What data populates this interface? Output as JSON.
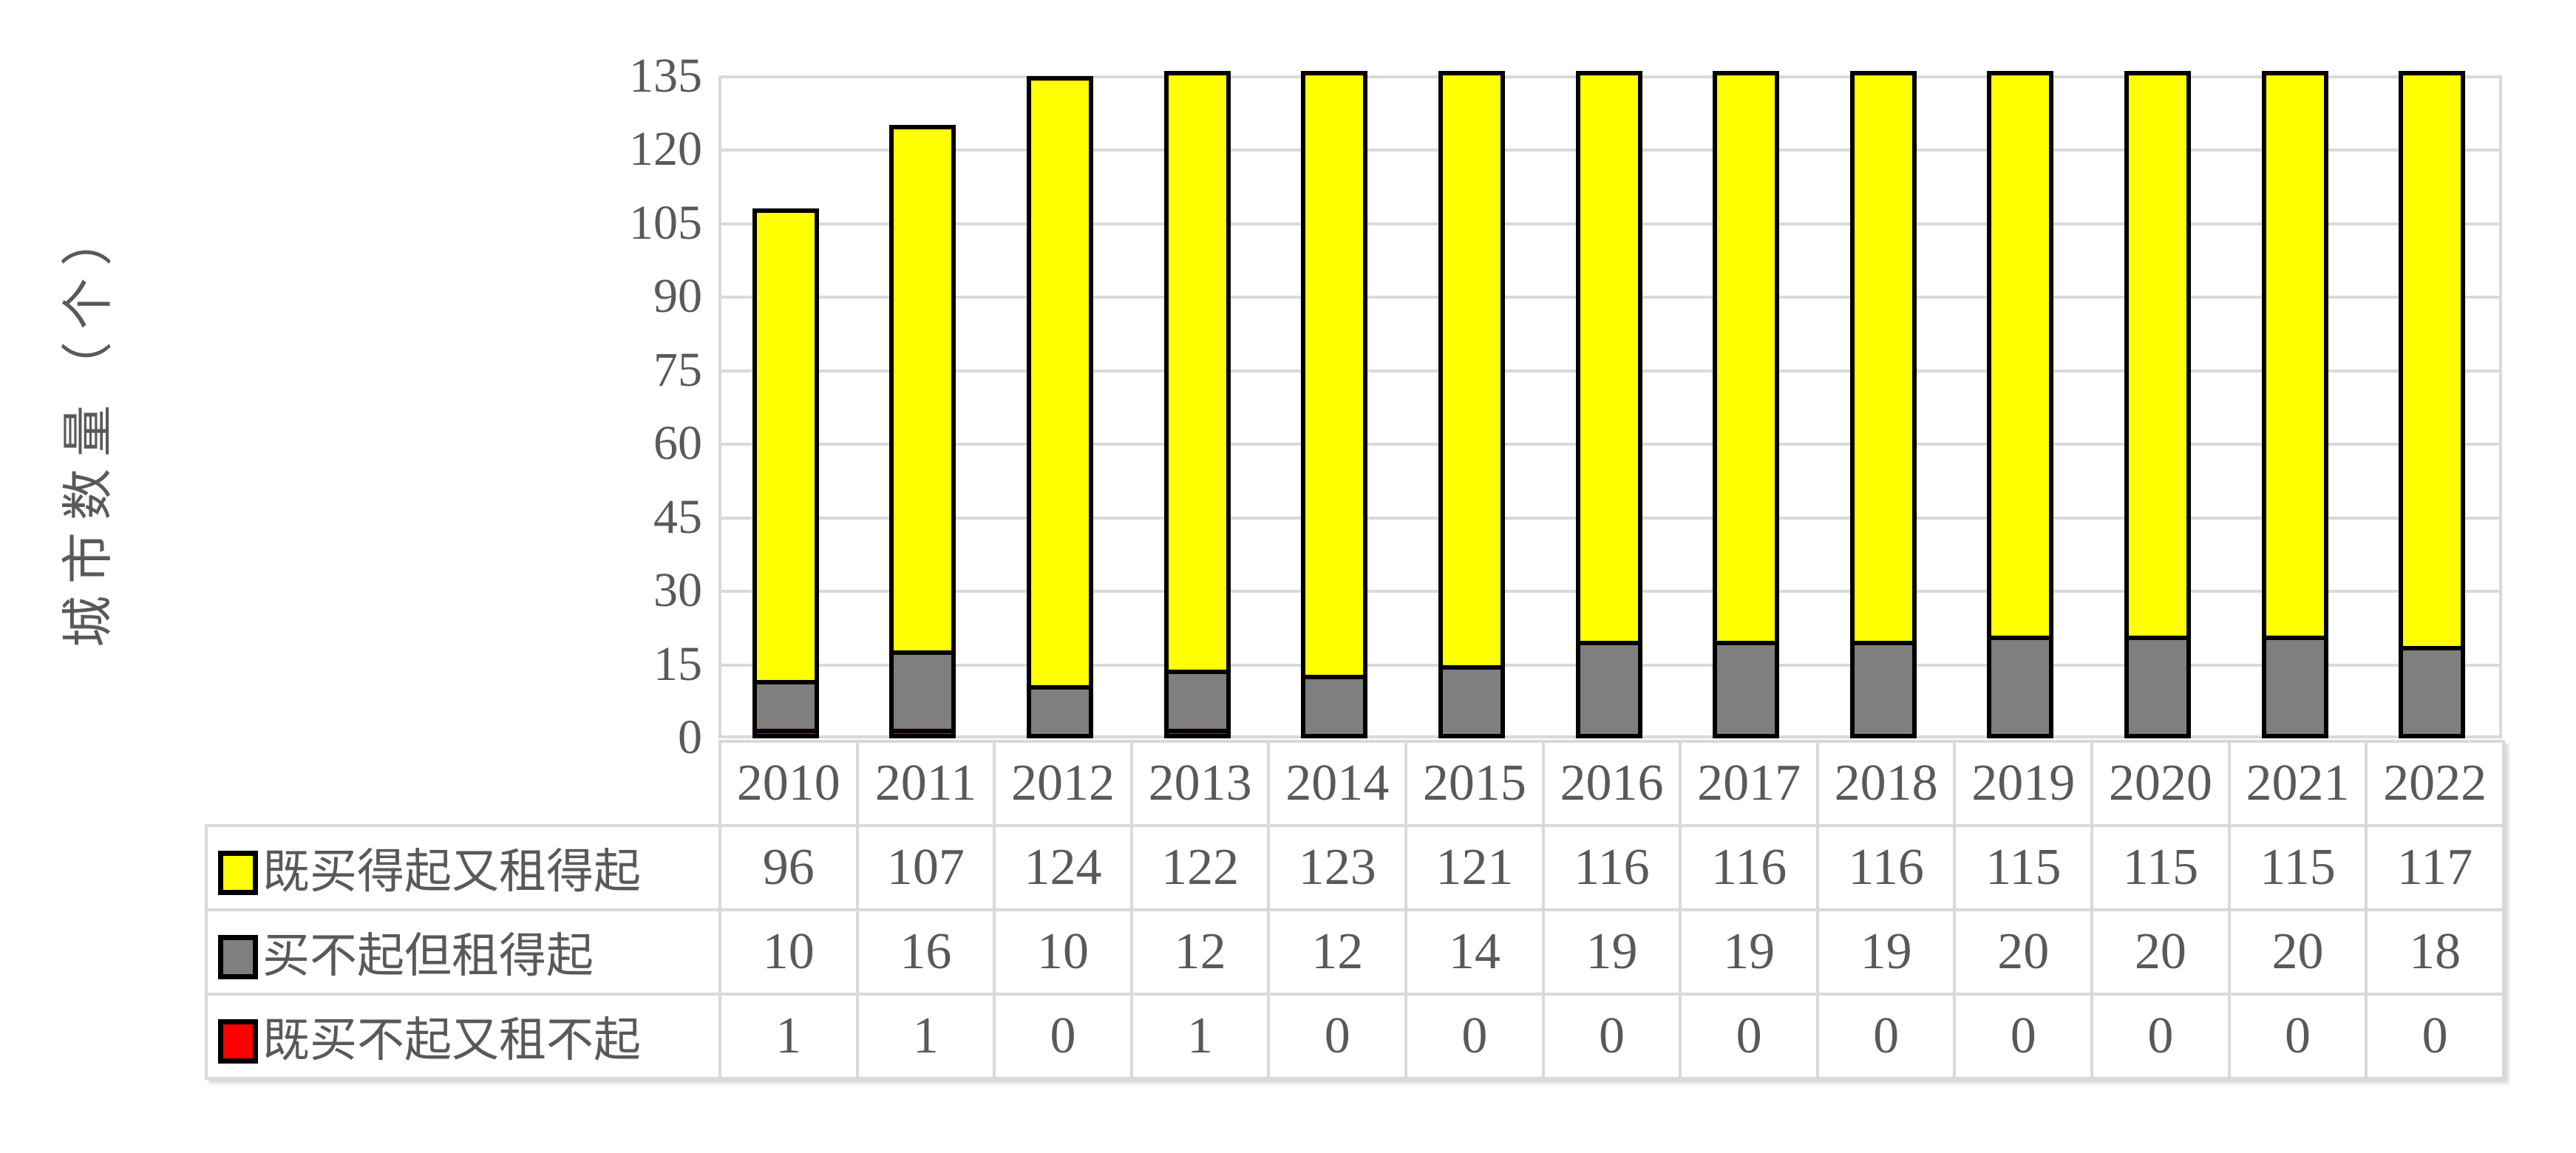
{
  "chart_data": {
    "type": "bar",
    "stacked": true,
    "title": "",
    "xlabel": "",
    "ylabel": "城市数量（个）",
    "categories": [
      "2010",
      "2011",
      "2012",
      "2013",
      "2014",
      "2015",
      "2016",
      "2017",
      "2018",
      "2019",
      "2020",
      "2021",
      "2022"
    ],
    "series": [
      {
        "name": "既买得起又租得起",
        "color": "#FFFF00",
        "values": [
          96,
          107,
          124,
          122,
          123,
          121,
          116,
          116,
          116,
          115,
          115,
          115,
          117
        ]
      },
      {
        "name": "买不起但租得起",
        "color": "#7F7F7F",
        "values": [
          10,
          16,
          10,
          12,
          12,
          14,
          19,
          19,
          19,
          20,
          20,
          20,
          18
        ]
      },
      {
        "name": "既买不起又租不起",
        "color": "#FF0000",
        "values": [
          1,
          1,
          0,
          1,
          0,
          0,
          0,
          0,
          0,
          0,
          0,
          0,
          0
        ]
      }
    ],
    "stack_order_bottom_to_top": [
      "既买不起又租不起",
      "买不起但租得起",
      "既买得起又租得起"
    ],
    "ylim": [
      0,
      135
    ],
    "yticks": [
      0,
      15,
      30,
      45,
      60,
      75,
      90,
      105,
      120,
      135
    ],
    "grid": true,
    "legend_position": "data-table-left-column",
    "colors": {
      "text": "#595959",
      "gridline": "#D9D9D9",
      "bar_border": "#000000",
      "table_border": "#D9D9D9",
      "background": "#FFFFFF"
    }
  }
}
